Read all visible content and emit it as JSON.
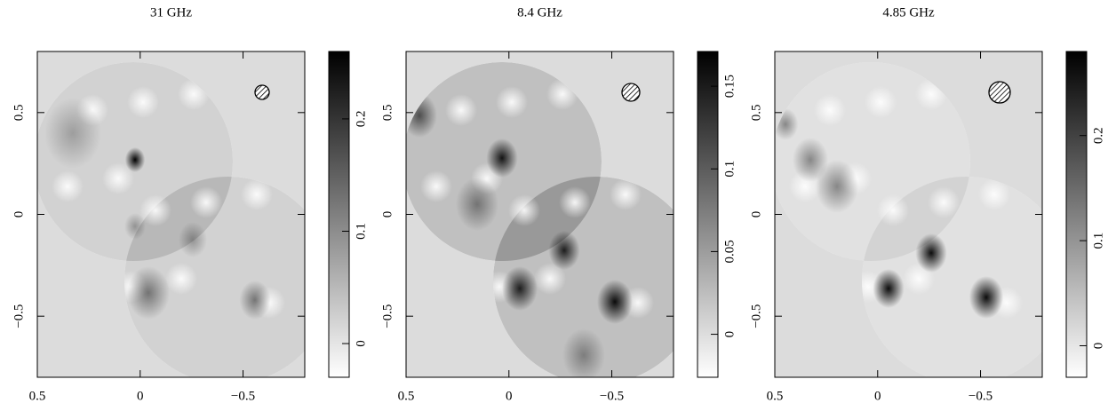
{
  "chart_data": [
    {
      "type": "image",
      "title": "31 GHz",
      "xlim": [
        0.5,
        -0.8
      ],
      "xticks": [
        0.5,
        0,
        {
          "value": -0.5,
          "label": "−0.5"
        }
      ],
      "ylim": [
        -0.8,
        0.8
      ],
      "yticks": [
        {
          "value": -0.5,
          "label": "−0.5"
        },
        0,
        0.5
      ],
      "clim": [
        -0.03,
        0.26
      ],
      "cticks": [
        0,
        0.1,
        0.2
      ]
    },
    {
      "type": "image",
      "title": "8.4 GHz",
      "xlim": [
        0.5,
        -0.8
      ],
      "xticks": [
        0.5,
        0,
        {
          "value": -0.5,
          "label": "−0.5"
        }
      ],
      "ylim": [
        -0.8,
        0.8
      ],
      "yticks": [
        {
          "value": -0.5,
          "label": "−0.5"
        },
        0,
        0.5
      ],
      "clim": [
        -0.026,
        0.171
      ],
      "cticks": [
        0,
        0.05,
        0.1,
        0.15
      ]
    },
    {
      "type": "image",
      "title": "4.85 GHz",
      "xlim": [
        0.5,
        -0.8
      ],
      "xticks": [
        0.5,
        0,
        {
          "value": -0.5,
          "label": "−0.5"
        }
      ],
      "ylim": [
        -0.8,
        0.8
      ],
      "yticks": [
        {
          "value": -0.5,
          "label": "−0.5"
        },
        0,
        0.5
      ],
      "clim": [
        -0.03,
        0.28
      ],
      "cticks": [
        0,
        0.1,
        0.2
      ]
    }
  ]
}
